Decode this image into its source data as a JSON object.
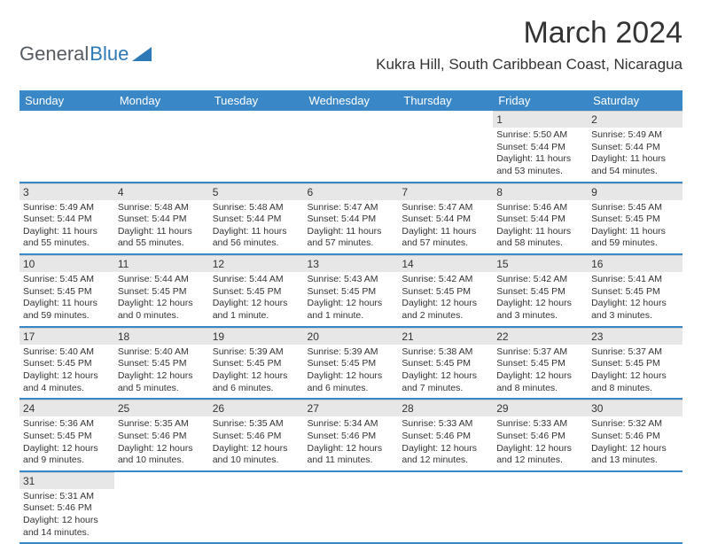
{
  "logo": {
    "text1": "General",
    "text2": "Blue",
    "shape_color": "#2d78b6"
  },
  "title": "March 2024",
  "location": "Kukra Hill, South Caribbean Coast, Nicaragua",
  "title_fontsize": 34,
  "location_fontsize": 17,
  "header_bg": "#3a87c8",
  "header_fg": "#ffffff",
  "daynum_bg": "#e7e7e7",
  "row_border": "#3a87c8",
  "day_headers": [
    "Sunday",
    "Monday",
    "Tuesday",
    "Wednesday",
    "Thursday",
    "Friday",
    "Saturday"
  ],
  "weeks": [
    [
      null,
      null,
      null,
      null,
      null,
      {
        "n": "1",
        "sr": "5:50 AM",
        "ss": "5:44 PM",
        "dl": "11 hours and 53 minutes."
      },
      {
        "n": "2",
        "sr": "5:49 AM",
        "ss": "5:44 PM",
        "dl": "11 hours and 54 minutes."
      }
    ],
    [
      {
        "n": "3",
        "sr": "5:49 AM",
        "ss": "5:44 PM",
        "dl": "11 hours and 55 minutes."
      },
      {
        "n": "4",
        "sr": "5:48 AM",
        "ss": "5:44 PM",
        "dl": "11 hours and 55 minutes."
      },
      {
        "n": "5",
        "sr": "5:48 AM",
        "ss": "5:44 PM",
        "dl": "11 hours and 56 minutes."
      },
      {
        "n": "6",
        "sr": "5:47 AM",
        "ss": "5:44 PM",
        "dl": "11 hours and 57 minutes."
      },
      {
        "n": "7",
        "sr": "5:47 AM",
        "ss": "5:44 PM",
        "dl": "11 hours and 57 minutes."
      },
      {
        "n": "8",
        "sr": "5:46 AM",
        "ss": "5:44 PM",
        "dl": "11 hours and 58 minutes."
      },
      {
        "n": "9",
        "sr": "5:45 AM",
        "ss": "5:45 PM",
        "dl": "11 hours and 59 minutes."
      }
    ],
    [
      {
        "n": "10",
        "sr": "5:45 AM",
        "ss": "5:45 PM",
        "dl": "11 hours and 59 minutes."
      },
      {
        "n": "11",
        "sr": "5:44 AM",
        "ss": "5:45 PM",
        "dl": "12 hours and 0 minutes."
      },
      {
        "n": "12",
        "sr": "5:44 AM",
        "ss": "5:45 PM",
        "dl": "12 hours and 1 minute."
      },
      {
        "n": "13",
        "sr": "5:43 AM",
        "ss": "5:45 PM",
        "dl": "12 hours and 1 minute."
      },
      {
        "n": "14",
        "sr": "5:42 AM",
        "ss": "5:45 PM",
        "dl": "12 hours and 2 minutes."
      },
      {
        "n": "15",
        "sr": "5:42 AM",
        "ss": "5:45 PM",
        "dl": "12 hours and 3 minutes."
      },
      {
        "n": "16",
        "sr": "5:41 AM",
        "ss": "5:45 PM",
        "dl": "12 hours and 3 minutes."
      }
    ],
    [
      {
        "n": "17",
        "sr": "5:40 AM",
        "ss": "5:45 PM",
        "dl": "12 hours and 4 minutes."
      },
      {
        "n": "18",
        "sr": "5:40 AM",
        "ss": "5:45 PM",
        "dl": "12 hours and 5 minutes."
      },
      {
        "n": "19",
        "sr": "5:39 AM",
        "ss": "5:45 PM",
        "dl": "12 hours and 6 minutes."
      },
      {
        "n": "20",
        "sr": "5:39 AM",
        "ss": "5:45 PM",
        "dl": "12 hours and 6 minutes."
      },
      {
        "n": "21",
        "sr": "5:38 AM",
        "ss": "5:45 PM",
        "dl": "12 hours and 7 minutes."
      },
      {
        "n": "22",
        "sr": "5:37 AM",
        "ss": "5:45 PM",
        "dl": "12 hours and 8 minutes."
      },
      {
        "n": "23",
        "sr": "5:37 AM",
        "ss": "5:45 PM",
        "dl": "12 hours and 8 minutes."
      }
    ],
    [
      {
        "n": "24",
        "sr": "5:36 AM",
        "ss": "5:45 PM",
        "dl": "12 hours and 9 minutes."
      },
      {
        "n": "25",
        "sr": "5:35 AM",
        "ss": "5:46 PM",
        "dl": "12 hours and 10 minutes."
      },
      {
        "n": "26",
        "sr": "5:35 AM",
        "ss": "5:46 PM",
        "dl": "12 hours and 10 minutes."
      },
      {
        "n": "27",
        "sr": "5:34 AM",
        "ss": "5:46 PM",
        "dl": "12 hours and 11 minutes."
      },
      {
        "n": "28",
        "sr": "5:33 AM",
        "ss": "5:46 PM",
        "dl": "12 hours and 12 minutes."
      },
      {
        "n": "29",
        "sr": "5:33 AM",
        "ss": "5:46 PM",
        "dl": "12 hours and 12 minutes."
      },
      {
        "n": "30",
        "sr": "5:32 AM",
        "ss": "5:46 PM",
        "dl": "12 hours and 13 minutes."
      }
    ],
    [
      {
        "n": "31",
        "sr": "5:31 AM",
        "ss": "5:46 PM",
        "dl": "12 hours and 14 minutes."
      },
      null,
      null,
      null,
      null,
      null,
      null
    ]
  ]
}
